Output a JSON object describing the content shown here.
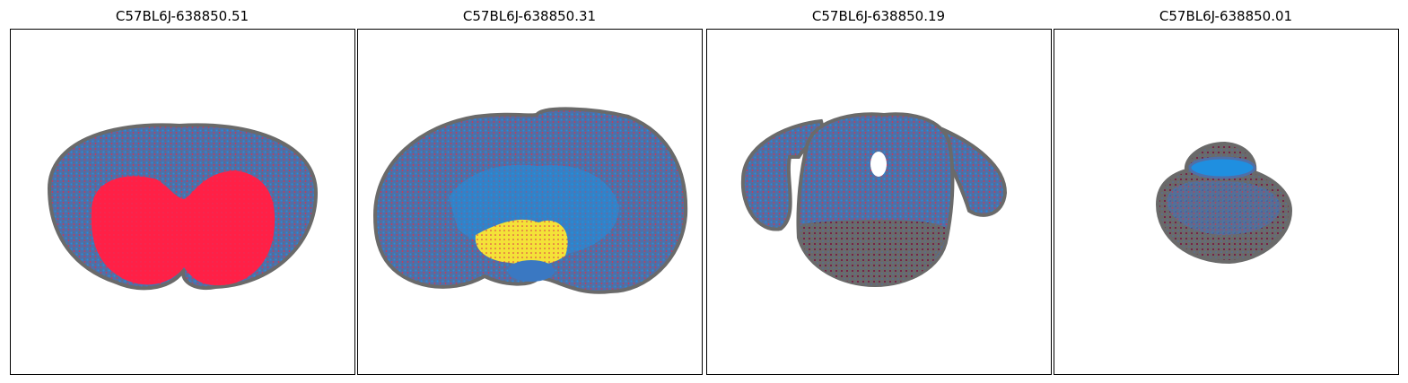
{
  "panels": [
    {
      "title": "C57BL6J-638850.51"
    },
    {
      "title": "C57BL6J-638850.31"
    },
    {
      "title": "C57BL6J-638850.19"
    },
    {
      "title": "C57BL6J-638850.01"
    }
  ]
}
